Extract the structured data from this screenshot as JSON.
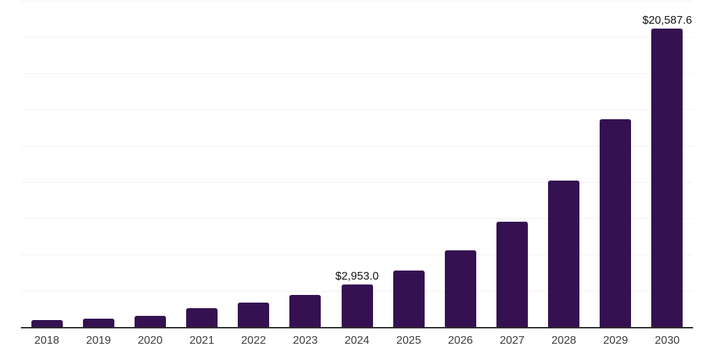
{
  "chart_data": {
    "type": "bar",
    "title": "",
    "xlabel": "",
    "ylabel": "",
    "categories": [
      "2018",
      "2019",
      "2020",
      "2021",
      "2022",
      "2023",
      "2024",
      "2025",
      "2026",
      "2027",
      "2028",
      "2029",
      "2030"
    ],
    "values": [
      500,
      570,
      780,
      1310,
      1690,
      2200,
      2953.0,
      3900,
      5300,
      7260,
      10110,
      14350,
      20587.6
    ],
    "data_labels": [
      "",
      "",
      "",
      "",
      "",
      "",
      "$2,953.0",
      "",
      "",
      "",
      "",
      "",
      "$20,587.6"
    ],
    "ylim": [
      0,
      22500
    ],
    "gridline_step": 2500,
    "y_tick_labels_visible": false,
    "grid": "horizontal",
    "legend": "none",
    "bar_color": "#351151",
    "grid_color": "#f2f2f2",
    "axis_line_color": "#2b2b2b",
    "data_label_color": "#111111",
    "tick_label_color": "#3b3b3b",
    "background_color": "#ffffff"
  }
}
